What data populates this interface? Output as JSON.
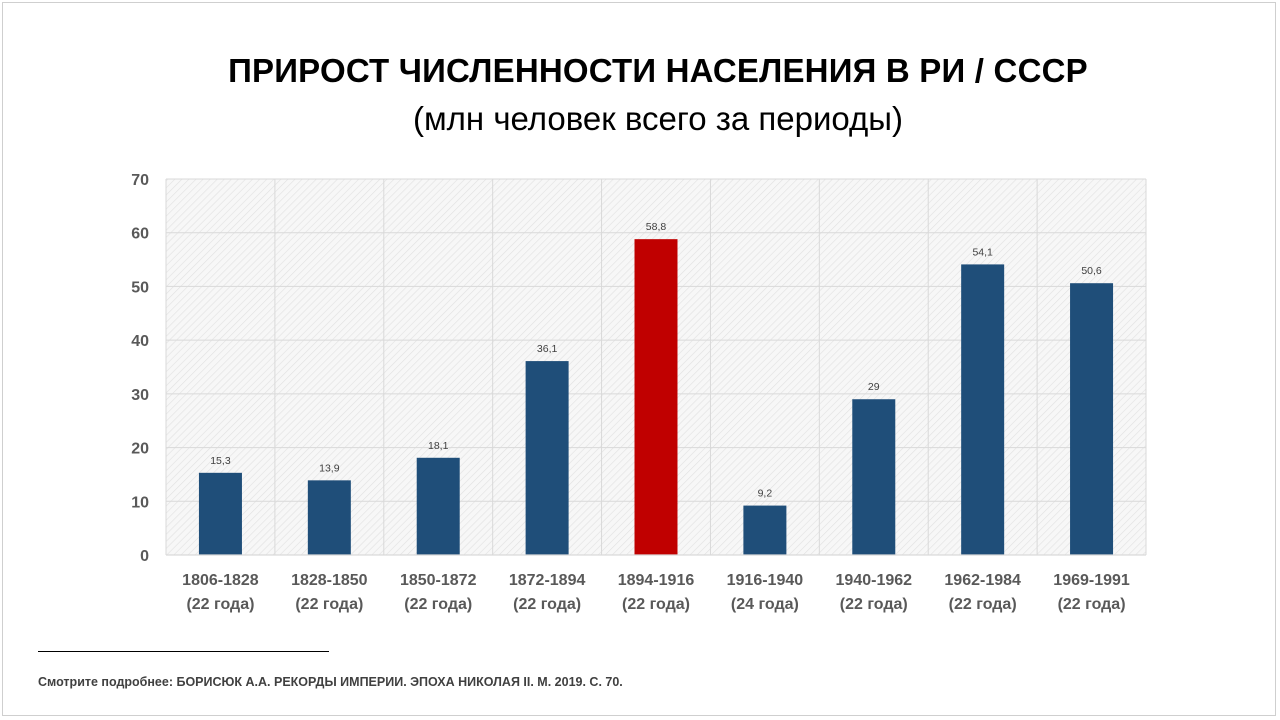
{
  "title": "ПРИРОСТ ЧИСЛЕННОСТИ НАСЕЛЕНИЯ В РИ / СССР",
  "subtitle": "(млн человек всего за периоды)",
  "footnote": "Смотрите подробнее: БОРИСЮК А.А. РЕКОРДЫ ИМПЕРИИ. ЭПОХА НИКОЛАЯ II. М. 2019. С. 70.",
  "colors": {
    "bar": "#1f4e79",
    "highlight": "#c00000",
    "axis_text": "#595959",
    "data_label": "#404040"
  },
  "chart_data": {
    "type": "bar",
    "categories": [
      [
        "1806-1828",
        "(22 года)"
      ],
      [
        "1828-1850",
        "(22 года)"
      ],
      [
        "1850-1872",
        "(22 года)"
      ],
      [
        "1872-1894",
        "(22 года)"
      ],
      [
        "1894-1916",
        "(22 года)"
      ],
      [
        "1916-1940",
        "(24 года)"
      ],
      [
        "1940-1962",
        "(22 года)"
      ],
      [
        "1962-1984",
        "(22 года)"
      ],
      [
        "1969-1991",
        "(22 года)"
      ]
    ],
    "values": [
      15.3,
      13.9,
      18.1,
      36.1,
      58.8,
      9.2,
      29,
      54.1,
      50.6
    ],
    "data_labels": [
      "15,3",
      "13,9",
      "18,1",
      "36,1",
      "58,8",
      "9,2",
      "29",
      "54,1",
      "50,6"
    ],
    "highlight_index": 4,
    "ylim": [
      0,
      70
    ],
    "yticks": [
      0,
      10,
      20,
      30,
      40,
      50,
      60,
      70
    ],
    "grid": true,
    "legend": "none"
  }
}
